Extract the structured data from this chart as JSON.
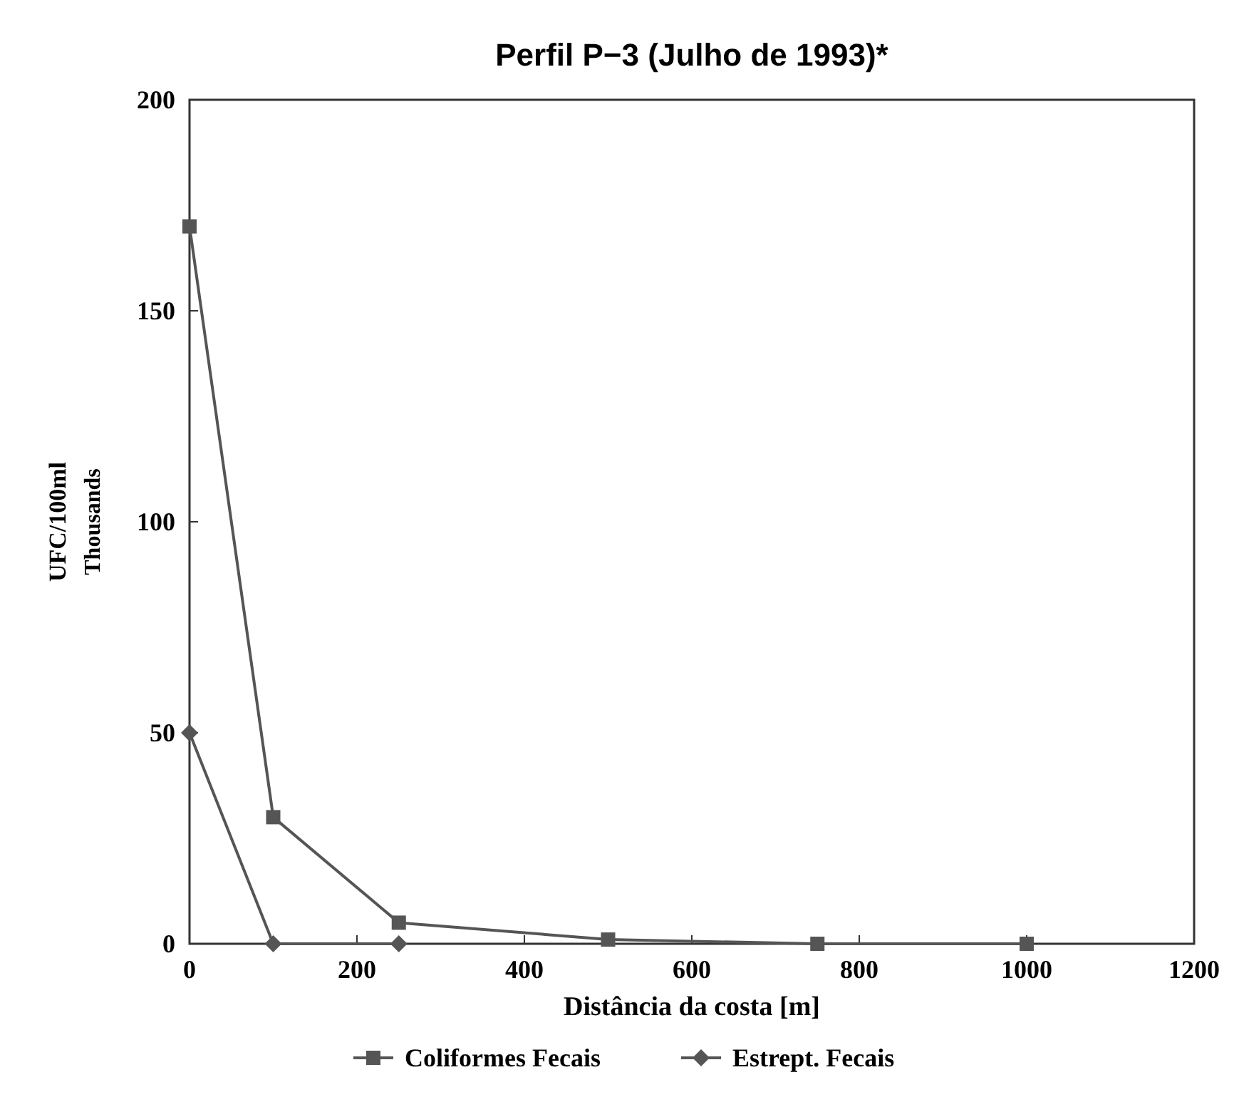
{
  "chart_data": {
    "type": "line",
    "title": "Perfil P−3 (Julho de 1993)*",
    "xlabel": "Distância da costa [m]",
    "ylabel": "UFC/100ml",
    "annotations": [
      "Thousands"
    ],
    "xlim": [
      0,
      1200
    ],
    "xticks": [
      0,
      200,
      400,
      600,
      800,
      1000,
      1200
    ],
    "ylim": [
      0,
      200
    ],
    "yticks": [
      0,
      50,
      100,
      150,
      200
    ],
    "grid": false,
    "legend": "bottom",
    "series": [
      {
        "name": "Coliformes Fecais",
        "color": "#555555",
        "marker": "square",
        "x": [
          0,
          100,
          250,
          500,
          750,
          1000
        ],
        "values": [
          170,
          30,
          5,
          1,
          0,
          0
        ]
      },
      {
        "name": "Estrept. Fecais",
        "color": "#555555",
        "marker": "diamond",
        "x": [
          0,
          100,
          250
        ],
        "values": [
          50,
          0,
          0
        ]
      }
    ]
  }
}
